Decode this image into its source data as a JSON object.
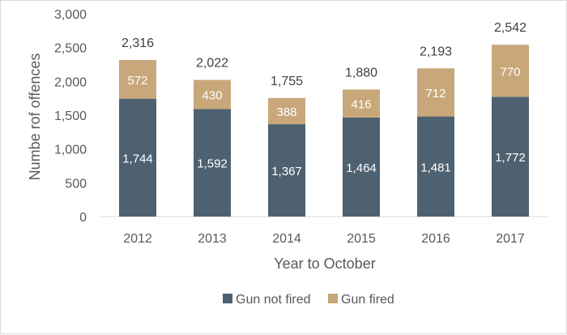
{
  "chart_data": {
    "type": "bar",
    "stacked": true,
    "categories": [
      "2012",
      "2013",
      "2014",
      "2015",
      "2016",
      "2017"
    ],
    "series": [
      {
        "name": "Gun not fired",
        "color": "#4e6170",
        "label_color": "#ffffff",
        "values": [
          1744,
          1592,
          1367,
          1464,
          1481,
          1772
        ]
      },
      {
        "name": "Gun fired",
        "color": "#c8a77a",
        "label_color": "#ffffff",
        "values": [
          572,
          430,
          388,
          416,
          712,
          770
        ]
      }
    ],
    "totals": [
      2316,
      2022,
      1755,
      1880,
      2193,
      2542
    ],
    "xlabel": "Year to October",
    "ylabel": "Numbe rof offences",
    "ylim": [
      0,
      3000
    ],
    "yticks": [
      0,
      500,
      1000,
      1500,
      2000,
      2500,
      3000
    ],
    "legend_position": "bottom",
    "grid": false
  }
}
